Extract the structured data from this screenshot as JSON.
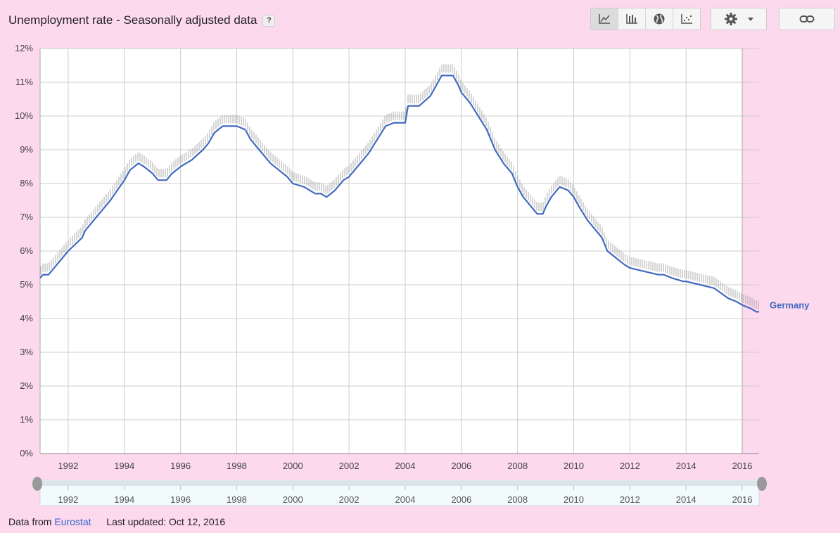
{
  "header": {
    "title": "Unemployment rate - Seasonally adjusted data",
    "help_label": "?"
  },
  "toolbar": {
    "buttons": [
      {
        "name": "line-chart-icon",
        "active": true
      },
      {
        "name": "bar-chart-icon",
        "active": false
      },
      {
        "name": "globe-icon",
        "active": false
      },
      {
        "name": "scatter-chart-icon",
        "active": false
      }
    ],
    "settings_icon": "gear-icon",
    "dropdown_icon": "caret-down-icon",
    "link_icon": "link-icon"
  },
  "footer": {
    "data_from_label": "Data from",
    "source_name": "Eurostat",
    "last_updated_label": "Last updated: Oct 12, 2016"
  },
  "colors": {
    "background": "#fdd9ee",
    "series": "#4169c1",
    "grid": "#cccccc"
  },
  "chart_data": {
    "type": "line",
    "title": "Unemployment rate - Seasonally adjusted data",
    "xlabel": "",
    "ylabel": "",
    "x_range": [
      1991.0,
      2016.6
    ],
    "ylim": [
      0,
      12
    ],
    "y_ticks": [
      0,
      1,
      2,
      3,
      4,
      5,
      6,
      7,
      8,
      9,
      10,
      11,
      12
    ],
    "y_tick_labels": [
      "0%",
      "1%",
      "2%",
      "3%",
      "4%",
      "5%",
      "6%",
      "7%",
      "8%",
      "9%",
      "10%",
      "11%",
      "12%"
    ],
    "x_ticks": [
      1992,
      1994,
      1996,
      1998,
      2000,
      2002,
      2004,
      2006,
      2008,
      2010,
      2012,
      2014,
      2016
    ],
    "x_tick_labels": [
      "1992",
      "1994",
      "1996",
      "1998",
      "2000",
      "2002",
      "2004",
      "2006",
      "2008",
      "2010",
      "2012",
      "2014",
      "2016"
    ],
    "grid": true,
    "series": [
      {
        "name": "Germany",
        "color": "#4169c1",
        "x": [
          1991.0,
          1991.1,
          1991.3,
          1991.6,
          1992.0,
          1992.5,
          1992.6,
          1993.0,
          1993.2,
          1993.5,
          1994.0,
          1994.2,
          1994.5,
          1994.7,
          1995.0,
          1995.1,
          1995.2,
          1995.5,
          1995.7,
          1996.0,
          1996.2,
          1996.4,
          1996.8,
          1997.0,
          1997.2,
          1997.5,
          1998.0,
          1998.3,
          1998.5,
          1998.8,
          1999.0,
          1999.2,
          1999.5,
          1999.8,
          2000.0,
          2000.4,
          2000.8,
          2001.0,
          2001.2,
          2001.5,
          2001.8,
          2002.0,
          2002.3,
          2002.7,
          2003.0,
          2003.3,
          2003.6,
          2004.0,
          2004.1,
          2004.5,
          2004.9,
          2005.1,
          2005.3,
          2005.7,
          2005.9,
          2006.0,
          2006.3,
          2006.6,
          2006.9,
          2007.2,
          2007.5,
          2007.8,
          2008.0,
          2008.2,
          2008.5,
          2008.7,
          2008.9,
          2009.0,
          2009.2,
          2009.5,
          2009.8,
          2010.0,
          2010.2,
          2010.5,
          2010.7,
          2011.0,
          2011.2,
          2011.5,
          2011.8,
          2012.0,
          2012.5,
          2013.0,
          2013.2,
          2013.5,
          2013.9,
          2014.0,
          2014.5,
          2015.0,
          2015.5,
          2015.8,
          2016.0,
          2016.3,
          2016.5,
          2016.6
        ],
        "y": [
          5.2,
          5.3,
          5.3,
          5.6,
          6.0,
          6.4,
          6.6,
          7.0,
          7.2,
          7.5,
          8.1,
          8.4,
          8.6,
          8.5,
          8.3,
          8.2,
          8.1,
          8.1,
          8.3,
          8.5,
          8.6,
          8.7,
          9.0,
          9.2,
          9.5,
          9.7,
          9.7,
          9.6,
          9.3,
          9.0,
          8.8,
          8.6,
          8.4,
          8.2,
          8.0,
          7.9,
          7.7,
          7.7,
          7.6,
          7.8,
          8.1,
          8.2,
          8.5,
          8.9,
          9.3,
          9.7,
          9.8,
          9.8,
          10.3,
          10.3,
          10.6,
          10.9,
          11.2,
          11.2,
          10.9,
          10.7,
          10.4,
          10.0,
          9.6,
          9.0,
          8.6,
          8.3,
          7.9,
          7.6,
          7.3,
          7.1,
          7.1,
          7.3,
          7.6,
          7.9,
          7.8,
          7.6,
          7.3,
          6.9,
          6.7,
          6.4,
          6.0,
          5.8,
          5.6,
          5.5,
          5.4,
          5.3,
          5.3,
          5.2,
          5.1,
          5.1,
          5.0,
          4.9,
          4.6,
          4.5,
          4.4,
          4.3,
          4.2,
          4.2
        ]
      }
    ],
    "legend": "right",
    "range_selector": {
      "x_tick_labels": [
        "1992",
        "1994",
        "1996",
        "1998",
        "2000",
        "2002",
        "2004",
        "2006",
        "2008",
        "2010",
        "2012",
        "2014",
        "2016"
      ]
    }
  }
}
